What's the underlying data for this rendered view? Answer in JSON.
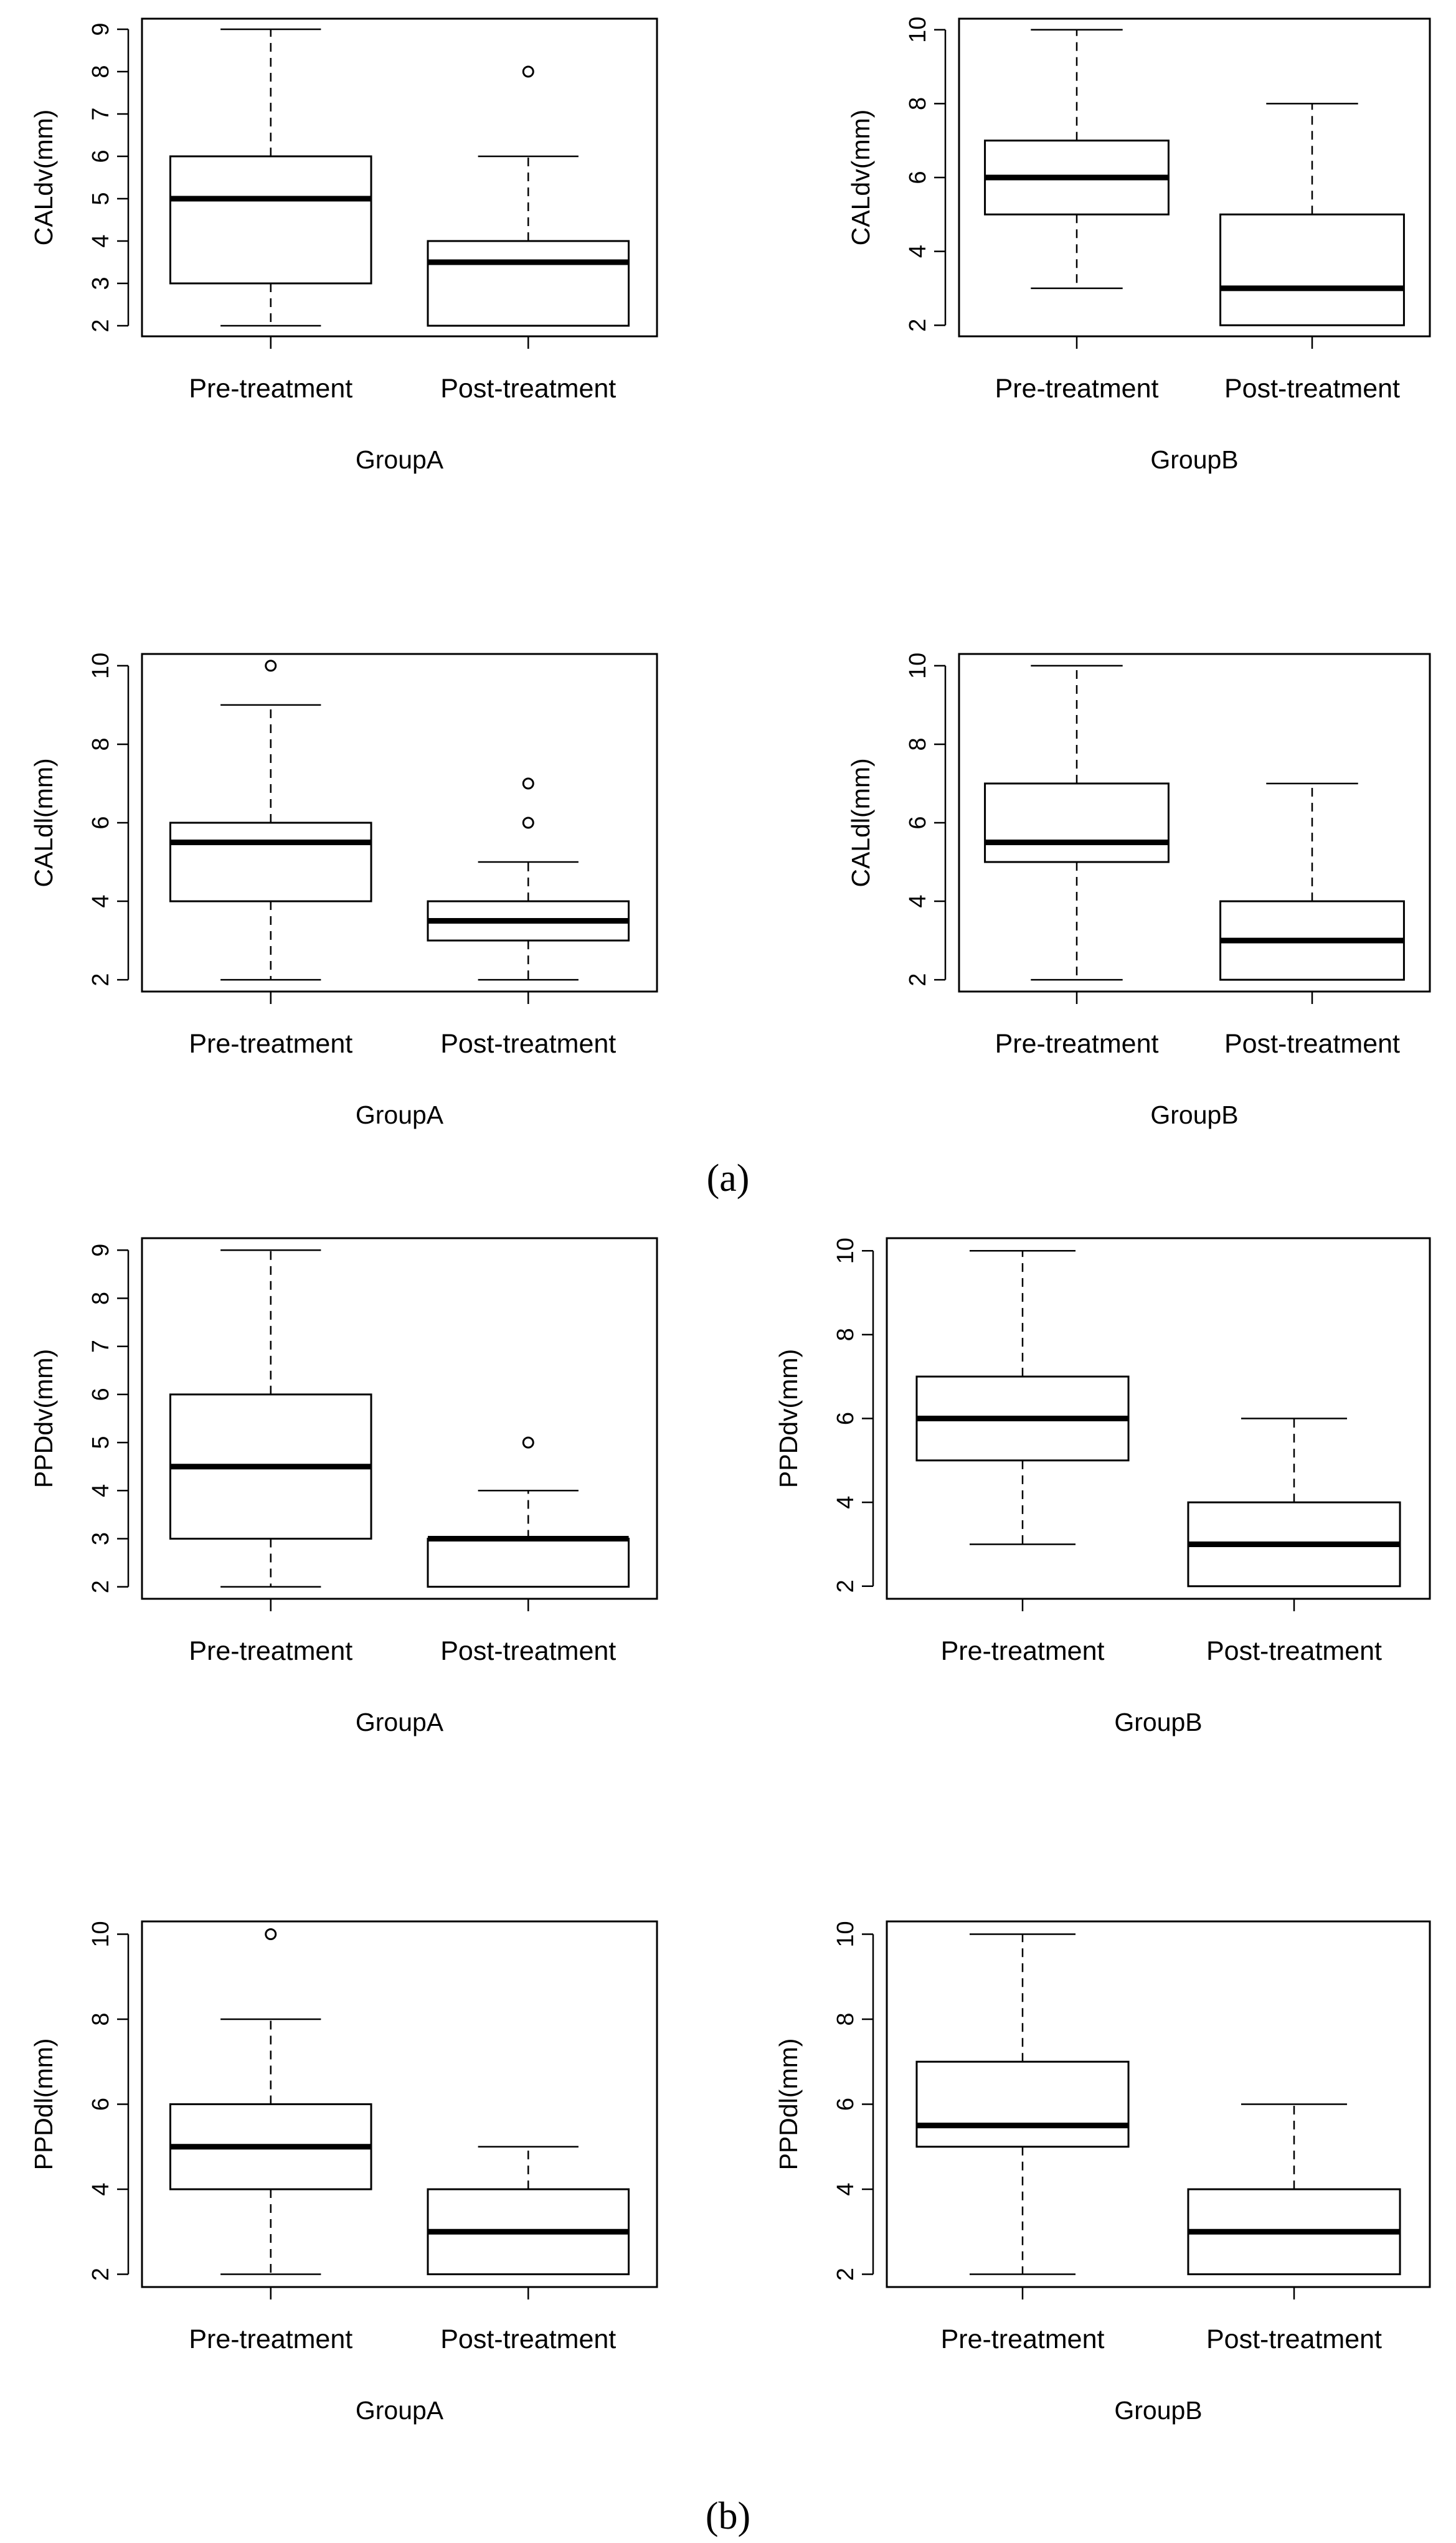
{
  "figure": {
    "panel_a_label": "(a)",
    "panel_b_label": "(b)"
  },
  "chart_data": [
    {
      "type": "boxplot",
      "panel": "a",
      "ylabel": "CALdv(mm)",
      "xlabel": "GroupA",
      "categories": [
        "Pre-treatment",
        "Post-treatment"
      ],
      "yticks": [
        2,
        3,
        4,
        5,
        6,
        7,
        8,
        9
      ],
      "ylim": [
        1.75,
        9.25
      ],
      "boxes": [
        {
          "whisker_low": 2,
          "q1": 3,
          "median": 5,
          "q3": 6,
          "whisker_high": 9,
          "outliers": []
        },
        {
          "whisker_low": 2,
          "q1": 2,
          "median": 3.5,
          "q3": 4,
          "whisker_high": 6,
          "outliers": [
            8
          ]
        }
      ]
    },
    {
      "type": "boxplot",
      "panel": "a",
      "ylabel": "CALdv(mm)",
      "xlabel": "GroupB",
      "categories": [
        "Pre-treatment",
        "Post-treatment"
      ],
      "yticks": [
        2,
        4,
        6,
        8,
        10
      ],
      "ylim": [
        1.7,
        10.3
      ],
      "boxes": [
        {
          "whisker_low": 3,
          "q1": 5,
          "median": 6,
          "q3": 7,
          "whisker_high": 10,
          "outliers": []
        },
        {
          "whisker_low": 2,
          "q1": 2,
          "median": 3,
          "q3": 5,
          "whisker_high": 8,
          "outliers": []
        }
      ]
    },
    {
      "type": "boxplot",
      "panel": "a",
      "ylabel": "CALdl(mm)",
      "xlabel": "GroupA",
      "categories": [
        "Pre-treatment",
        "Post-treatment"
      ],
      "yticks": [
        2,
        4,
        6,
        8,
        10
      ],
      "ylim": [
        1.7,
        10.3
      ],
      "boxes": [
        {
          "whisker_low": 2,
          "q1": 4,
          "median": 5.5,
          "q3": 6,
          "whisker_high": 9,
          "outliers": [
            10
          ]
        },
        {
          "whisker_low": 2,
          "q1": 3,
          "median": 3.5,
          "q3": 4,
          "whisker_high": 5,
          "outliers": [
            6,
            7
          ]
        }
      ]
    },
    {
      "type": "boxplot",
      "panel": "a",
      "ylabel": "CALdl(mm)",
      "xlabel": "GroupB",
      "categories": [
        "Pre-treatment",
        "Post-treatment"
      ],
      "yticks": [
        2,
        4,
        6,
        8,
        10
      ],
      "ylim": [
        1.7,
        10.3
      ],
      "boxes": [
        {
          "whisker_low": 2,
          "q1": 5,
          "median": 5.5,
          "q3": 7,
          "whisker_high": 10,
          "outliers": []
        },
        {
          "whisker_low": 2,
          "q1": 2,
          "median": 3,
          "q3": 4,
          "whisker_high": 7,
          "outliers": []
        }
      ]
    },
    {
      "type": "boxplot",
      "panel": "b",
      "ylabel": "PPDdv(mm)",
      "xlabel": "GroupA",
      "categories": [
        "Pre-treatment",
        "Post-treatment"
      ],
      "yticks": [
        2,
        3,
        4,
        5,
        6,
        7,
        8,
        9
      ],
      "ylim": [
        1.75,
        9.25
      ],
      "boxes": [
        {
          "whisker_low": 2,
          "q1": 3,
          "median": 4.5,
          "q3": 6,
          "whisker_high": 9,
          "outliers": []
        },
        {
          "whisker_low": 2,
          "q1": 2,
          "median": 3,
          "q3": 3,
          "whisker_high": 4,
          "outliers": [
            5
          ]
        }
      ]
    },
    {
      "type": "boxplot",
      "panel": "b",
      "ylabel": "PPDdv(mm)",
      "xlabel": "GroupB",
      "categories": [
        "Pre-treatment",
        "Post-treatment"
      ],
      "yticks": [
        2,
        4,
        6,
        8,
        10
      ],
      "ylim": [
        1.7,
        10.3
      ],
      "boxes": [
        {
          "whisker_low": 3,
          "q1": 5,
          "median": 6,
          "q3": 7,
          "whisker_high": 10,
          "outliers": []
        },
        {
          "whisker_low": 2,
          "q1": 2,
          "median": 3,
          "q3": 4,
          "whisker_high": 6,
          "outliers": []
        }
      ]
    },
    {
      "type": "boxplot",
      "panel": "b",
      "ylabel": "PPDdl(mm)",
      "xlabel": "GroupA",
      "categories": [
        "Pre-treatment",
        "Post-treatment"
      ],
      "yticks": [
        2,
        4,
        6,
        8,
        10
      ],
      "ylim": [
        1.7,
        10.3
      ],
      "boxes": [
        {
          "whisker_low": 2,
          "q1": 4,
          "median": 5,
          "q3": 6,
          "whisker_high": 8,
          "outliers": [
            10
          ]
        },
        {
          "whisker_low": 2,
          "q1": 2,
          "median": 3,
          "q3": 4,
          "whisker_high": 5,
          "outliers": []
        }
      ]
    },
    {
      "type": "boxplot",
      "panel": "b",
      "ylabel": "PPDdl(mm)",
      "xlabel": "GroupB",
      "categories": [
        "Pre-treatment",
        "Post-treatment"
      ],
      "yticks": [
        2,
        4,
        6,
        8,
        10
      ],
      "ylim": [
        1.7,
        10.3
      ],
      "boxes": [
        {
          "whisker_low": 2,
          "q1": 5,
          "median": 5.5,
          "q3": 7,
          "whisker_high": 10,
          "outliers": []
        },
        {
          "whisker_low": 2,
          "q1": 2,
          "median": 3,
          "q3": 4,
          "whisker_high": 6,
          "outliers": []
        }
      ]
    }
  ]
}
